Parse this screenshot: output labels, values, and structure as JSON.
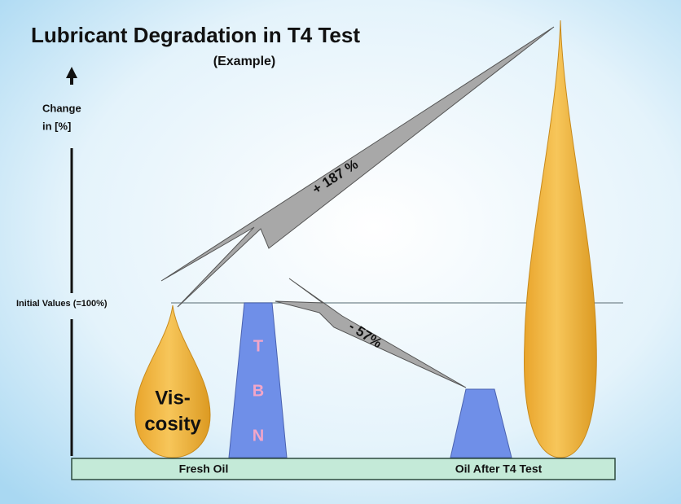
{
  "header": {
    "title": "Lubricant Degradation in T4 Test",
    "subtitle": "(Example)"
  },
  "axis": {
    "label_lines": [
      "Change",
      "in [%]"
    ]
  },
  "reference_line": {
    "label": "Initial Values (=100%)"
  },
  "fresh_oil": {
    "label": "Fresh Oil",
    "viscosity_lines": [
      "Vis-",
      "cosity"
    ],
    "tbn_letters": [
      "T",
      "B",
      "N"
    ]
  },
  "after_test": {
    "label": "Oil After T4 Test"
  },
  "annotations": [
    "+ 187 %",
    "- 57%"
  ]
}
